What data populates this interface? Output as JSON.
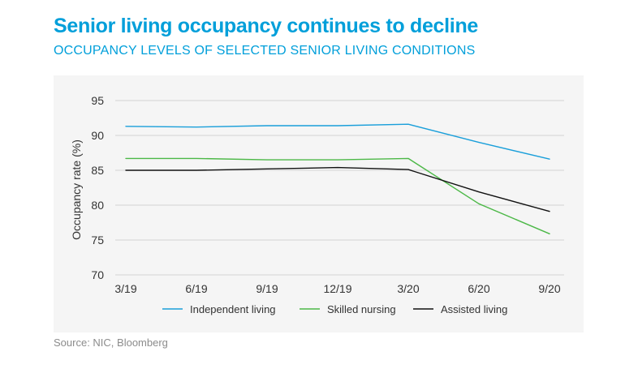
{
  "title": "Senior living occupancy continues to decline",
  "subtitle": "OCCUPANCY LEVELS OF SELECTED SENIOR LIVING CONDITIONS",
  "source": "Source: NIC, Bloomberg",
  "chart_data": {
    "type": "line",
    "title": "Senior living occupancy continues to decline",
    "subtitle": "OCCUPANCY LEVELS OF SELECTED SENIOR LIVING CONDITIONS",
    "xlabel": "",
    "ylabel": "Occupancy rate (%)",
    "ylim": [
      70,
      95
    ],
    "yticks": [
      70,
      75,
      80,
      85,
      90,
      95
    ],
    "categories": [
      "3/19",
      "6/19",
      "9/19",
      "12/19",
      "3/20",
      "6/20",
      "9/20"
    ],
    "grid": true,
    "legend": "bottom",
    "series": [
      {
        "name": "Independent living",
        "color": "#1a9fda",
        "values": [
          91.3,
          91.2,
          91.4,
          91.4,
          91.6,
          89.0,
          86.6
        ]
      },
      {
        "name": "Skilled nursing",
        "color": "#4cb847",
        "values": [
          86.7,
          86.7,
          86.5,
          86.5,
          86.7,
          80.2,
          75.9
        ]
      },
      {
        "name": "Assisted living",
        "color": "#111111",
        "values": [
          85.0,
          85.0,
          85.2,
          85.4,
          85.1,
          81.9,
          79.1
        ]
      }
    ]
  }
}
